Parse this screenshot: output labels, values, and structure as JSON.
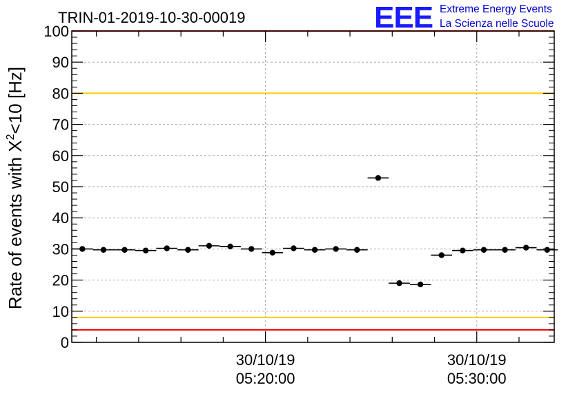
{
  "chart_data": {
    "type": "scatter",
    "title": "TRIN-01-2019-10-30-00019",
    "ylabel_prefix": "Rate of events with X",
    "ylabel_sup": "2",
    "ylabel_suffix": "<10 [Hz]",
    "ylim": [
      0,
      100
    ],
    "yticks": [
      "0",
      "10",
      "20",
      "30",
      "40",
      "50",
      "60",
      "70",
      "80",
      "90",
      "100"
    ],
    "grid": true,
    "xticks": [
      {
        "date": "30/10/19",
        "time": "05:20:00"
      },
      {
        "date": "30/10/19",
        "time": "05:30:00"
      }
    ],
    "xlim": [
      "05:10:50",
      "05:33:40"
    ],
    "bin_width_s": 60,
    "series": [
      {
        "x": [
          "05:11:20",
          "05:12:20",
          "05:13:20",
          "05:14:20",
          "05:15:20",
          "05:16:20",
          "05:17:20",
          "05:18:20",
          "05:19:20",
          "05:20:20",
          "05:21:20",
          "05:22:20",
          "05:23:20",
          "05:24:20",
          "05:25:20",
          "05:26:20",
          "05:27:20",
          "05:28:20",
          "05:29:20",
          "05:30:20",
          "05:31:20",
          "05:32:20",
          "05:33:20"
        ],
        "values": [
          30.0,
          29.7,
          29.7,
          29.5,
          30.2,
          29.7,
          31.0,
          30.8,
          30.0,
          28.8,
          30.2,
          29.7,
          30.0,
          29.7,
          52.8,
          19.0,
          18.6,
          28.0,
          29.5,
          29.7,
          29.7,
          30.4,
          29.7
        ]
      }
    ],
    "reference_lines": [
      {
        "y": 80,
        "color": "#ffcc00"
      },
      {
        "y": 8,
        "color": "#ffcc00"
      },
      {
        "y": 100,
        "color": "#ff0000"
      },
      {
        "y": 4,
        "color": "#ff0000"
      }
    ],
    "marker_color": "#000000",
    "grid_color": "#aaaaaa"
  },
  "logo": {
    "mark": "EEE",
    "line1": "Extreme Energy Events",
    "line2": "La Scienza nelle Scuole",
    "color": "#1a1aff"
  }
}
